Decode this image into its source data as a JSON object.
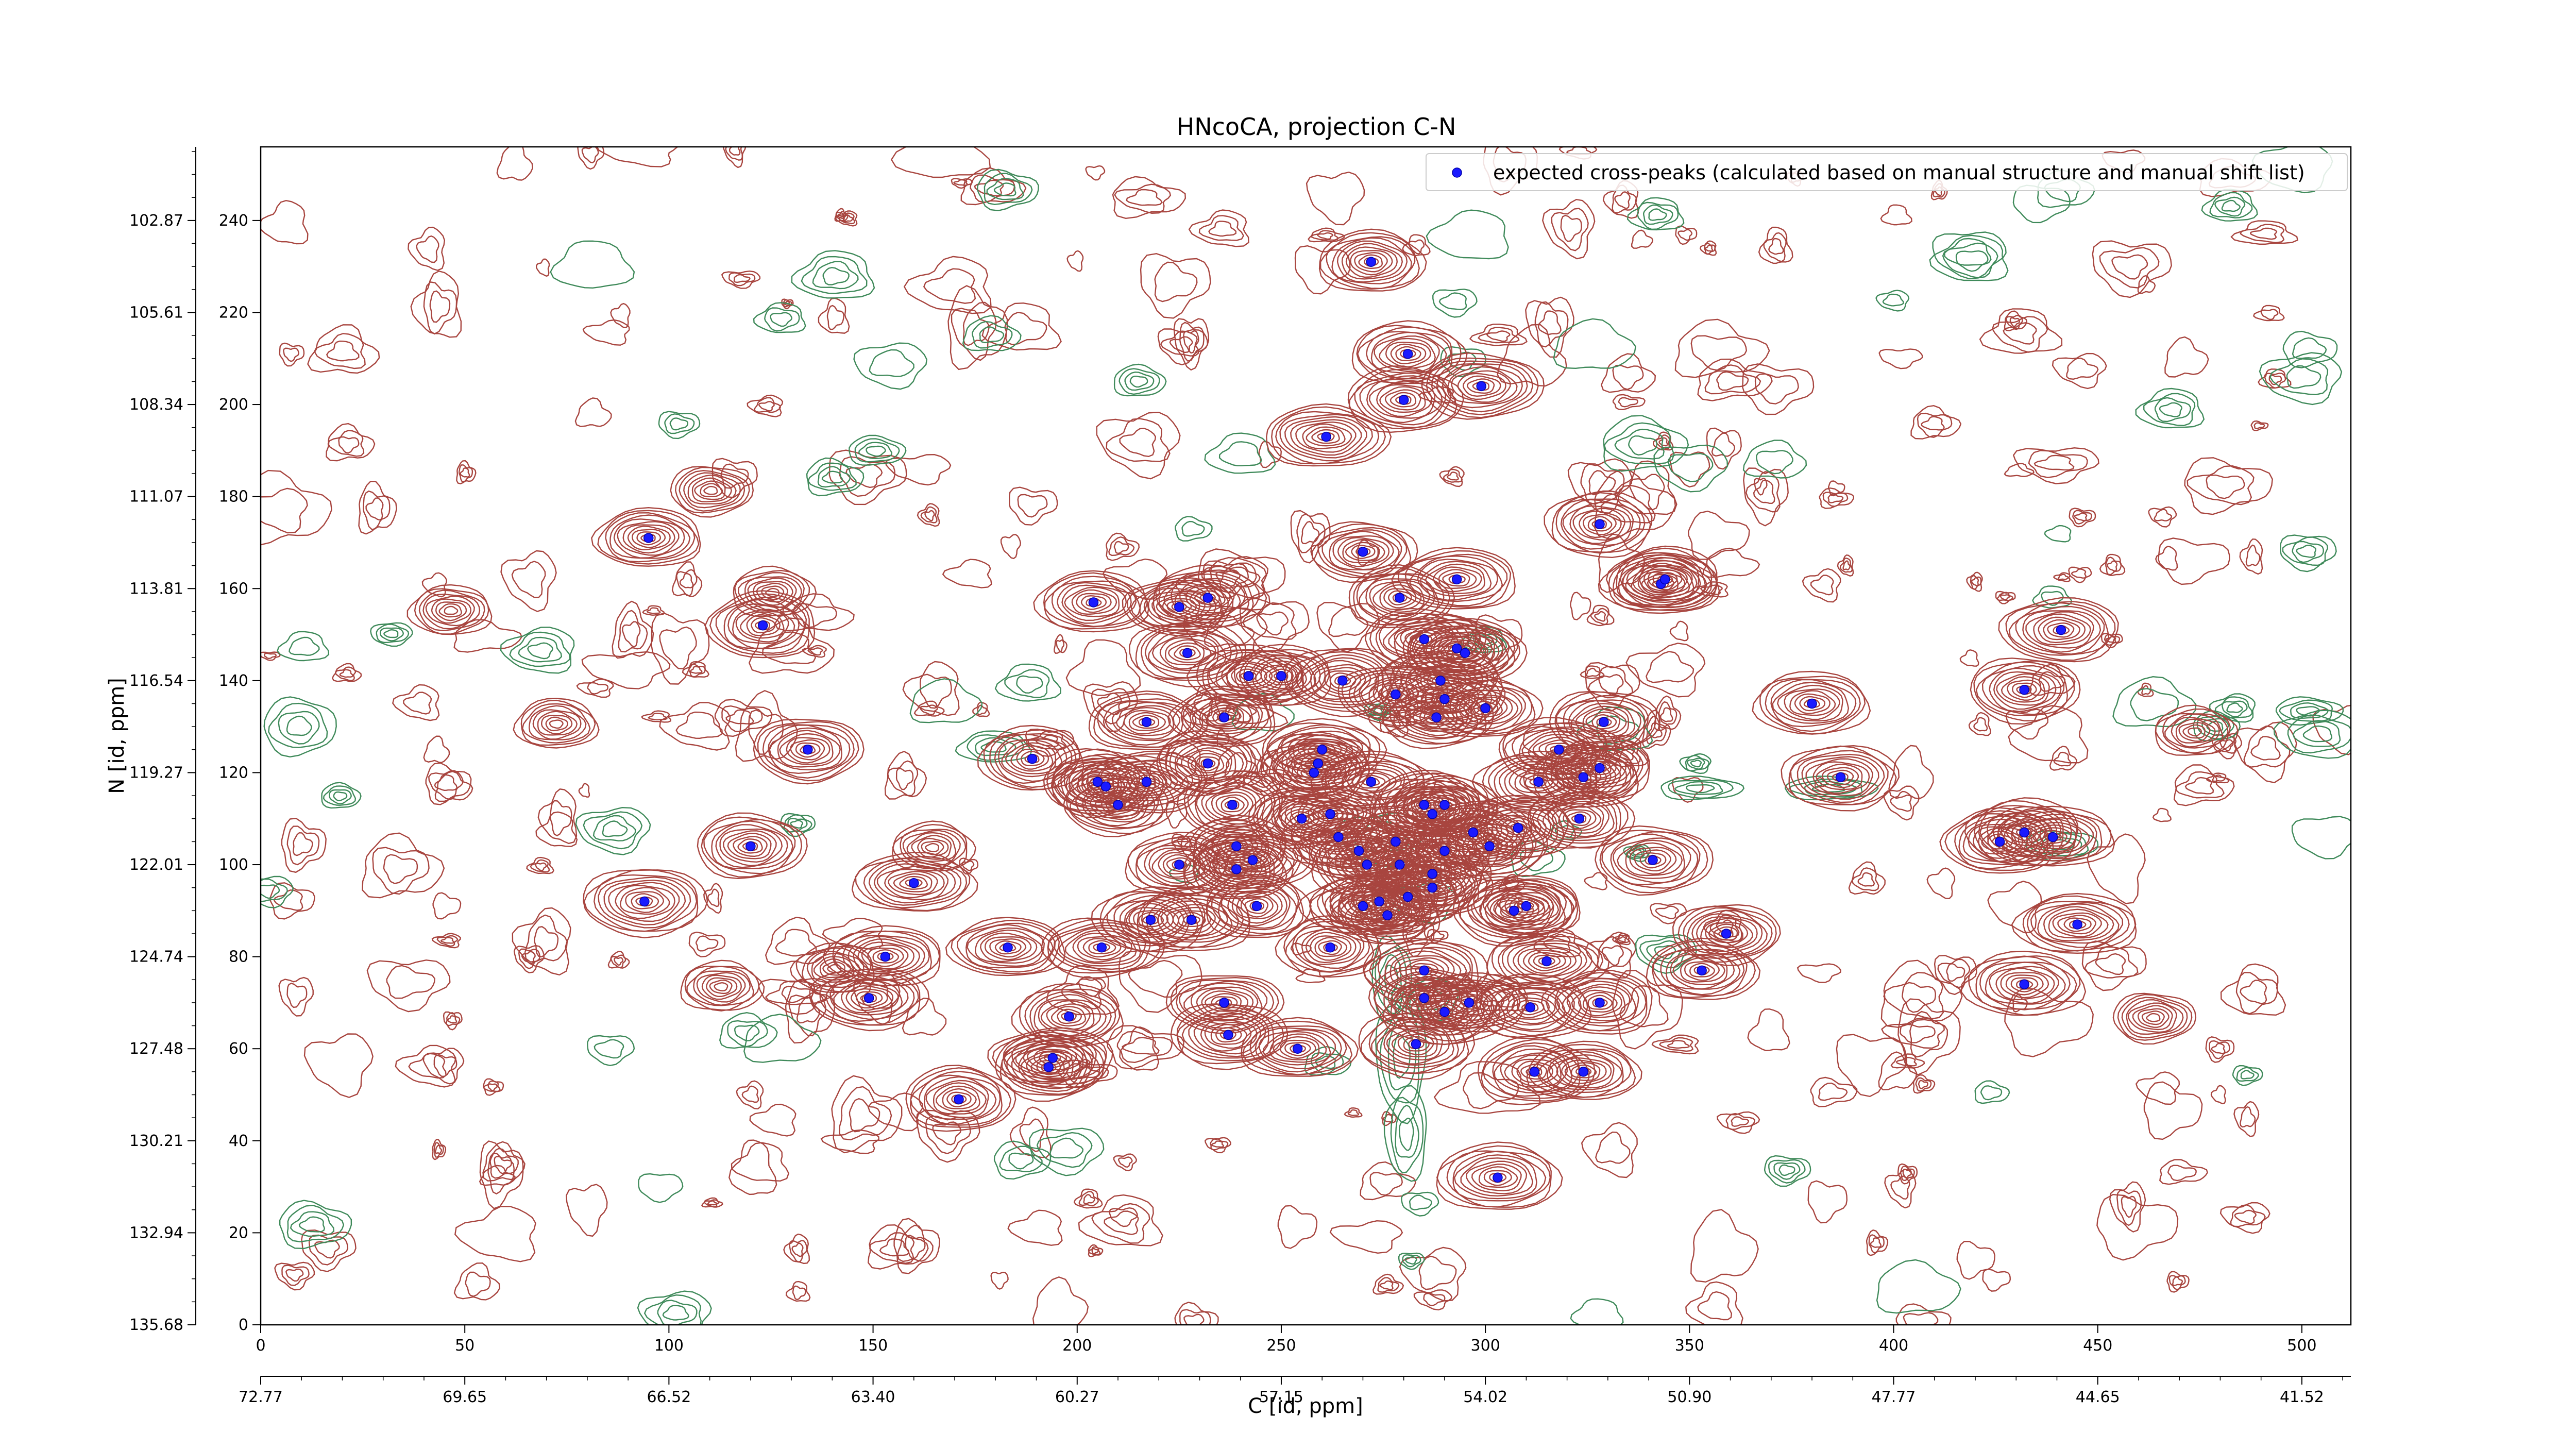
{
  "chart_data": {
    "type": "scatter",
    "title": "HNcoCA, projection C-N",
    "xlabel": "C [id, ppm]",
    "ylabel": "N [id, ppm]",
    "xlim": [
      0,
      512
    ],
    "ylim": [
      0,
      256
    ],
    "x_ticks": [
      "0",
      "50",
      "100",
      "150",
      "200",
      "250",
      "300",
      "350",
      "400",
      "450",
      "500"
    ],
    "y_ticks": [
      "0",
      "20",
      "40",
      "60",
      "80",
      "100",
      "120",
      "140",
      "160",
      "180",
      "200",
      "220",
      "240"
    ],
    "x_ppm_ticks": [
      "72.77",
      "69.65",
      "66.52",
      "63.40",
      "60.27",
      "57.15",
      "54.02",
      "50.90",
      "47.77",
      "44.65",
      "41.52"
    ],
    "y_ppm_ticks": [
      "135.68",
      "132.94",
      "130.21",
      "127.48",
      "124.74",
      "122.01",
      "119.27",
      "116.54",
      "113.81",
      "111.07",
      "108.34",
      "105.61",
      "102.87"
    ],
    "grid": false,
    "legend_position": "top-right",
    "marker_color": "#1a1aff",
    "positive_contour_color": "#a8453f",
    "negative_contour_color": "#3f8a5a",
    "series": [
      {
        "name": "expected cross-peaks (calculated based on manual structure and manual shift list)",
        "points": [
          [
            272,
            231
          ],
          [
            281,
            211
          ],
          [
            280,
            201
          ],
          [
            299,
            204
          ],
          [
            261,
            193
          ],
          [
            95,
            171
          ],
          [
            123,
            152
          ],
          [
            204,
            157
          ],
          [
            232,
            158
          ],
          [
            225,
            156
          ],
          [
            270,
            168
          ],
          [
            293,
            162
          ],
          [
            328,
            174
          ],
          [
            343,
            161
          ],
          [
            279,
            158
          ],
          [
            285,
            149
          ],
          [
            293,
            147
          ],
          [
            295,
            146
          ],
          [
            227,
            146
          ],
          [
            242,
            141
          ],
          [
            250,
            141
          ],
          [
            265,
            140
          ],
          [
            278,
            137
          ],
          [
            289,
            140
          ],
          [
            290,
            136
          ],
          [
            288,
            132
          ],
          [
            300,
            134
          ],
          [
            236,
            132
          ],
          [
            217,
            131
          ],
          [
            318,
            125
          ],
          [
            329,
            131
          ],
          [
            344,
            162
          ],
          [
            380,
            135
          ],
          [
            432,
            138
          ],
          [
            441,
            151
          ],
          [
            134,
            125
          ],
          [
            189,
            123
          ],
          [
            207,
            117
          ],
          [
            232,
            122
          ],
          [
            260,
            125
          ],
          [
            259,
            122
          ],
          [
            258,
            120
          ],
          [
            272,
            118
          ],
          [
            217,
            118
          ],
          [
            210,
            113
          ],
          [
            205,
            118
          ],
          [
            238,
            113
          ],
          [
            262,
            111
          ],
          [
            290,
            113
          ],
          [
            313,
            118
          ],
          [
            324,
            119
          ],
          [
            328,
            121
          ],
          [
            297,
            107
          ],
          [
            255,
            110
          ],
          [
            264,
            106
          ],
          [
            278,
            105
          ],
          [
            285,
            113
          ],
          [
            287,
            111
          ],
          [
            308,
            108
          ],
          [
            323,
            110
          ],
          [
            387,
            119
          ],
          [
            120,
            104
          ],
          [
            160,
            96
          ],
          [
            94,
            92
          ],
          [
            225,
            100
          ],
          [
            239,
            104
          ],
          [
            239,
            99
          ],
          [
            243,
            101
          ],
          [
            269,
            103
          ],
          [
            271,
            100
          ],
          [
            279,
            100
          ],
          [
            287,
            98
          ],
          [
            287,
            95
          ],
          [
            290,
            103
          ],
          [
            301,
            104
          ],
          [
            281,
            93
          ],
          [
            276,
            89
          ],
          [
            274,
            92
          ],
          [
            270,
            91
          ],
          [
            244,
            91
          ],
          [
            228,
            88
          ],
          [
            218,
            88
          ],
          [
            307,
            90
          ],
          [
            310,
            91
          ],
          [
            315,
            79
          ],
          [
            341,
            101
          ],
          [
            359,
            85
          ],
          [
            353,
            77
          ],
          [
            432,
            107
          ],
          [
            426,
            105
          ],
          [
            439,
            106
          ],
          [
            445,
            87
          ],
          [
            432,
            74
          ],
          [
            153,
            80
          ],
          [
            149,
            71
          ],
          [
            183,
            82
          ],
          [
            206,
            82
          ],
          [
            262,
            82
          ],
          [
            285,
            77
          ],
          [
            285,
            71
          ],
          [
            296,
            70
          ],
          [
            311,
            69
          ],
          [
            328,
            70
          ],
          [
            236,
            70
          ],
          [
            237,
            63
          ],
          [
            254,
            60
          ],
          [
            283,
            61
          ],
          [
            290,
            68
          ],
          [
            198,
            67
          ],
          [
            194,
            58
          ],
          [
            193,
            56
          ],
          [
            171,
            49
          ],
          [
            312,
            55
          ],
          [
            324,
            55
          ],
          [
            303,
            32
          ]
        ]
      }
    ]
  }
}
